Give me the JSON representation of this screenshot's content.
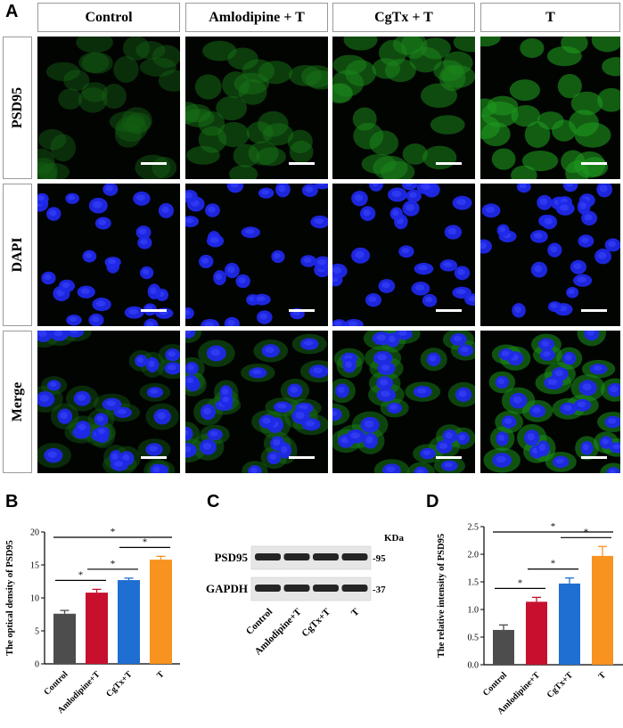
{
  "panel_A": {
    "letter": "A",
    "columns": [
      "Control",
      "Amlodipine + T",
      "CgTx + T",
      "T"
    ],
    "rows": [
      "PSD95",
      "DAPI",
      "Merge"
    ]
  },
  "panel_B": {
    "letter": "B"
  },
  "panel_C": {
    "letter": "C",
    "unit_label": "KDa",
    "bands": [
      {
        "label": "PSD95",
        "size": "-95"
      },
      {
        "label": "GAPDH",
        "size": "-37"
      }
    ],
    "lanes": [
      "Control",
      "Amlodipine+T",
      "CgTx+T",
      "T"
    ]
  },
  "panel_D": {
    "letter": "D"
  },
  "colors": {
    "control": "#4d4d4d",
    "amlodipine": "#c8102e",
    "cgtx": "#1e6fd1",
    "t": "#f7931e"
  },
  "chart_data": [
    {
      "type": "bar",
      "panel": "B",
      "categories": [
        "Control",
        "Amlodipine+T",
        "CgTx+T",
        "T"
      ],
      "values": [
        7.6,
        10.8,
        12.7,
        15.8
      ],
      "errors": [
        0.5,
        0.5,
        0.3,
        0.5
      ],
      "ylabel": "The optical density of PSD95",
      "ylim": [
        0,
        20
      ],
      "yticks": [
        "0",
        "5",
        "10",
        "15",
        "20"
      ],
      "significance": [
        {
          "from": 0,
          "to": 1,
          "label": "*"
        },
        {
          "from": 1,
          "to": 2,
          "label": "*"
        },
        {
          "from": 2,
          "to": 3,
          "label": "*"
        },
        {
          "from": 0,
          "to": 3,
          "label": "*"
        }
      ]
    },
    {
      "type": "bar",
      "panel": "D",
      "categories": [
        "Control",
        "Amlodipine+T",
        "CgTx+T",
        "T"
      ],
      "values": [
        0.63,
        1.14,
        1.47,
        1.97
      ],
      "errors": [
        0.09,
        0.08,
        0.1,
        0.17
      ],
      "ylabel": "The relative intensity of PSD95",
      "ylim": [
        0,
        2.5
      ],
      "yticks": [
        "0.0",
        "0.5",
        "1.0",
        "1.5",
        "2.0",
        "2.5"
      ],
      "significance": [
        {
          "from": 0,
          "to": 1,
          "label": "*"
        },
        {
          "from": 1,
          "to": 2,
          "label": "*"
        },
        {
          "from": 2,
          "to": 3,
          "label": "*"
        },
        {
          "from": 0,
          "to": 3,
          "label": "*"
        }
      ]
    }
  ]
}
